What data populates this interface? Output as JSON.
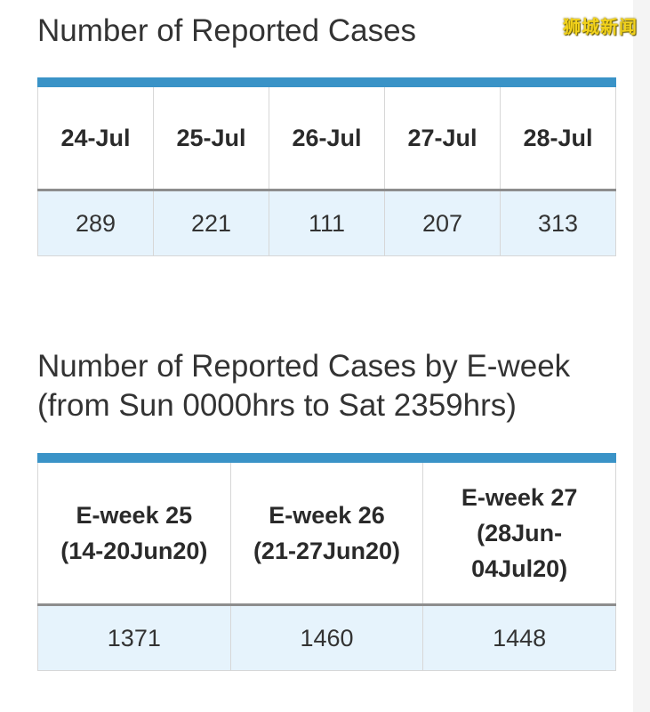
{
  "watermark": "狮城新闻",
  "daily": {
    "title": "Number of Reported Cases",
    "columns": [
      "24-Jul",
      "25-Jul",
      "26-Jul",
      "27-Jul",
      "28-Jul"
    ],
    "values": [
      "289",
      "221",
      "111",
      "207",
      "313"
    ]
  },
  "eweek": {
    "title": "Number of Reported Cases by E-week (from Sun 0000hrs to Sat 2359hrs)",
    "columns": [
      {
        "line1": "E-week 25",
        "line2": "(14-20Jun20)",
        "line3": ""
      },
      {
        "line1": "E-week 26",
        "line2": "(21-27Jun20)",
        "line3": ""
      },
      {
        "line1": "E-week 27",
        "line2": "(28Jun-",
        "line3": "04Jul20)"
      }
    ],
    "values": [
      "1371",
      "1460",
      "1448"
    ]
  },
  "colors": {
    "header_bar": "#3a93c7",
    "value_row_bg": "#e6f3fc",
    "watermark": "#f2d21b"
  }
}
